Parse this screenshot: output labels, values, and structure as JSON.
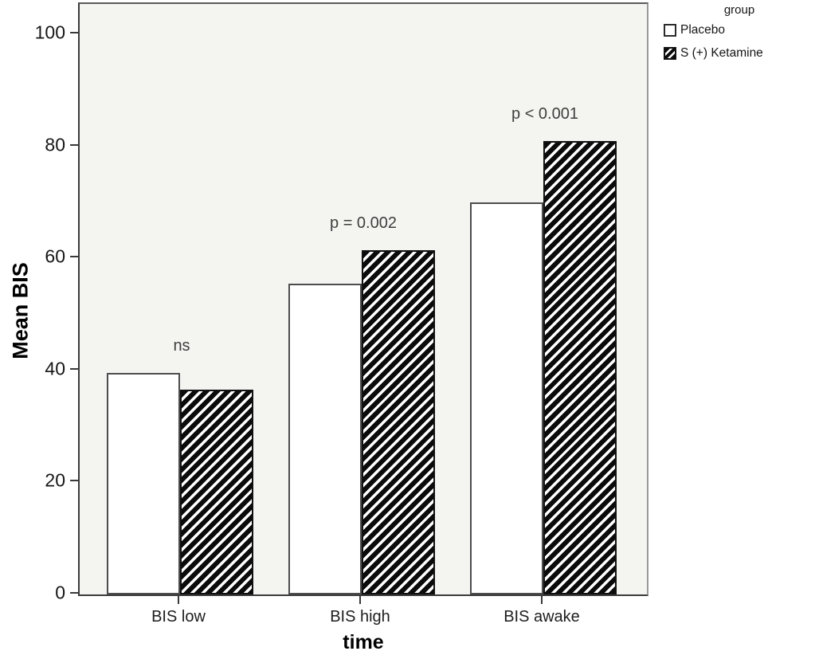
{
  "chart_data": {
    "type": "bar",
    "title": "",
    "categories": [
      "BIS low",
      "BIS high",
      "BIS awake"
    ],
    "series": [
      {
        "name": "Placebo",
        "pattern": "solid",
        "values": [
          39.5,
          55.5,
          70
        ]
      },
      {
        "name": "S (+) Ketamine",
        "pattern": "diagonal-hatch",
        "values": [
          36.5,
          61.5,
          81
        ]
      }
    ],
    "annotations": [
      {
        "category": "BIS low",
        "text": "ns"
      },
      {
        "category": "BIS high",
        "text": "p = 0.002"
      },
      {
        "category": "BIS awake",
        "text": "p < 0.001"
      }
    ],
    "xlabel": "time",
    "ylabel": "Mean BIS",
    "ylim": [
      0,
      100
    ],
    "yticks": [
      0,
      20,
      40,
      60,
      80,
      100
    ],
    "legend_title": "group",
    "legend_position": "top-right-outside",
    "grid": false
  },
  "colors": {
    "plot_background": "#f4f4f1",
    "page_background": "#ffffff",
    "bar_solid_fill": "#ffffff",
    "bar_solid_border": "#4d4d4d",
    "bar_hatch_dark": "#0b0b0b",
    "bar_hatch_light": "#ffffff",
    "axis_line": "#3a3a3a",
    "annotation_text": "#3e3e3e",
    "tick_text": "#161616"
  }
}
